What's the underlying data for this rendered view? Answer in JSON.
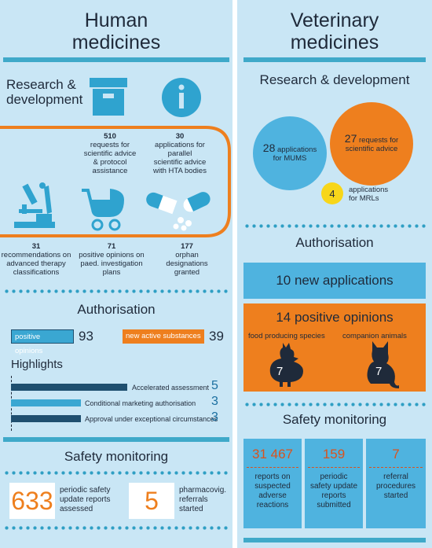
{
  "colors": {
    "background": "#c9e6f5",
    "teal": "#3fa9c9",
    "dark_blue": "#1f4f6f",
    "orange": "#ee7f1e",
    "yellow": "#f7d61a",
    "light_blue": "#4fb3df",
    "navy": "#1f2a3a"
  },
  "human": {
    "title_line1": "Human",
    "title_line2": "medicines",
    "rd": {
      "heading_line1": "Research &",
      "heading_line2": "development",
      "icons": [
        "archive-box-icon",
        "info-icon",
        "microscope-icon",
        "pram-icon",
        "capsules-icon"
      ],
      "scientific_advice": {
        "value": "510",
        "l1": "requests for",
        "l2": "scientific advice",
        "l3": "& protocol",
        "l4": "assistance"
      },
      "parallel_advice": {
        "value": "30",
        "l1": "applications for",
        "l2": "parallel",
        "l3": "scientific advice",
        "l4": "with HTA bodies"
      },
      "advanced_therapy": {
        "value": "31",
        "l1": "recommendations on",
        "l2": "advanced therapy",
        "l3": "classifications"
      },
      "paediatric": {
        "value": "71",
        "l1": "positive opinions on",
        "l2": "paed. investigation",
        "l3": "plans"
      },
      "orphan": {
        "value": "177",
        "l1": "orphan",
        "l2": "designations",
        "l3": "granted"
      }
    },
    "authorisation": {
      "heading": "Authorisation",
      "positive_label": "positive opinions",
      "positive_value": "93",
      "new_active_label": "new active substances",
      "new_active_value": "39"
    },
    "highlights": {
      "heading": "Highlights",
      "items": [
        {
          "label": "Accelerated assessment",
          "value": "5",
          "fraction": 1.0
        },
        {
          "label": "Conditional marketing authorisation",
          "value": "3",
          "fraction": 0.6
        },
        {
          "label": "Approval under exceptional circumstances",
          "value": "3",
          "fraction": 0.6
        }
      ]
    },
    "safety": {
      "heading": "Safety monitoring",
      "psur_value": "633",
      "psur_l1": "periodic safety",
      "psur_l2": "update reports",
      "psur_l3": "assessed",
      "referral_value": "5",
      "referral_l1": "pharmacovig.",
      "referral_l2": "referrals",
      "referral_l3": "started"
    }
  },
  "vet": {
    "title_line1": "Veterinary",
    "title_line2": "medicines",
    "rd": {
      "heading": "Research & development",
      "mums_value": "28",
      "mums_l1": "applications",
      "mums_l2": "for MUMS",
      "advice_value": "27",
      "advice_l1": "requests for",
      "advice_l2": "scientific advice",
      "mrl_value": "4",
      "mrl_l1": "applications",
      "mrl_l2": "for MRLs"
    },
    "authorisation": {
      "heading": "Authorisation",
      "new_applications": "10 new applications",
      "positive_opinions": "14 positive opinions",
      "food_label": "food producing species",
      "food_value": "7",
      "companion_label": "companion animals",
      "companion_value": "7",
      "icons": [
        "rooster-icon",
        "cat-icon"
      ]
    },
    "safety": {
      "heading": "Safety monitoring",
      "columns": [
        {
          "value": "31 467",
          "l1": "reports on",
          "l2": "suspected",
          "l3": "adverse",
          "l4": "reactions"
        },
        {
          "value": "159",
          "l1": "periodic",
          "l2": "safety update",
          "l3": "reports",
          "l4": "submitted"
        },
        {
          "value": "7",
          "l1": "referral",
          "l2": "procedures",
          "l3": "started",
          "l4": ""
        }
      ]
    }
  }
}
